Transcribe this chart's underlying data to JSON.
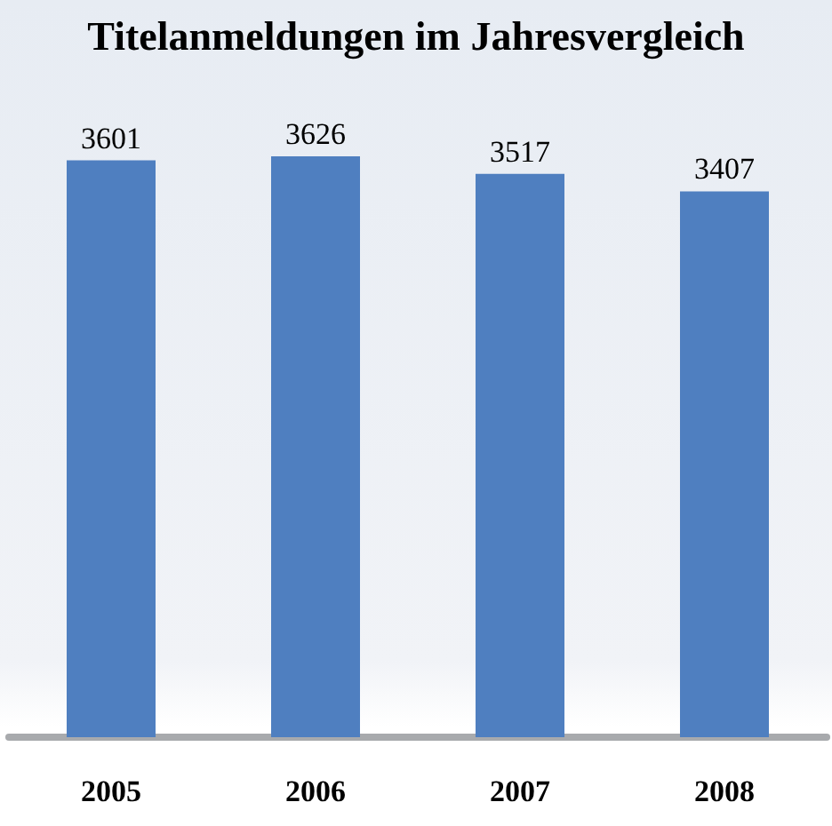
{
  "chart_data": {
    "type": "bar",
    "title": "Titelanmeldungen im Jahresvergleich",
    "categories": [
      "2005",
      "2006",
      "2007",
      "2008"
    ],
    "values": [
      3601,
      3626,
      3517,
      3407
    ],
    "color": "#4f7fc0",
    "data_labels": true,
    "tick_labels": "x"
  }
}
